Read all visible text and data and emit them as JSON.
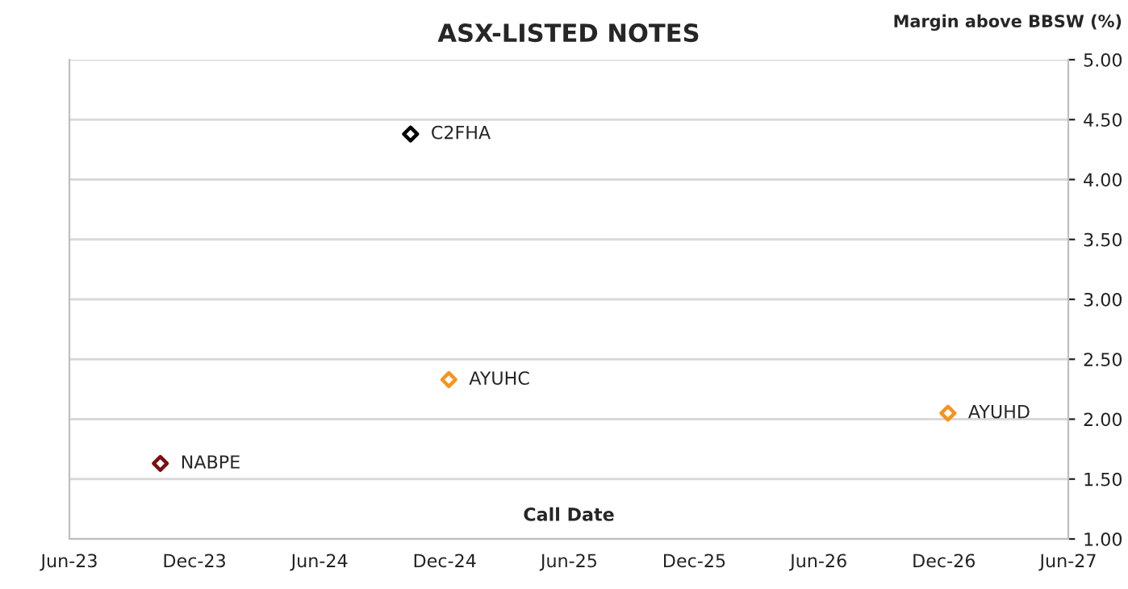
{
  "chart_data": {
    "type": "scatter",
    "title": "ASX-LISTED NOTES",
    "xlabel": "Call Date",
    "ylabel": "Margin above BBSW (%)",
    "series": [
      {
        "name": "C2FHA",
        "color": "#000000",
        "x": [
          "2024-10-12"
        ],
        "values": [
          4.38
        ]
      },
      {
        "name": "AYUHC",
        "color": "#f7931e",
        "x": [
          "2024-12-07"
        ],
        "values": [
          2.33
        ]
      },
      {
        "name": "AYUHD",
        "color": "#f7931e",
        "x": [
          "2026-12-07"
        ],
        "values": [
          2.05
        ]
      },
      {
        "name": "NABPE",
        "color": "#7b0f0f",
        "x": [
          "2023-10-12"
        ],
        "values": [
          1.63
        ]
      }
    ],
    "xlim": [
      "2023-06-01",
      "2027-06-01"
    ],
    "xticks": [
      {
        "value": "2023-06-01",
        "label": "Jun-23"
      },
      {
        "value": "2023-12-01",
        "label": "Dec-23"
      },
      {
        "value": "2024-06-01",
        "label": "Jun-24"
      },
      {
        "value": "2024-12-01",
        "label": "Dec-24"
      },
      {
        "value": "2025-06-01",
        "label": "Jun-25"
      },
      {
        "value": "2025-12-01",
        "label": "Dec-25"
      },
      {
        "value": "2026-06-01",
        "label": "Jun-26"
      },
      {
        "value": "2026-12-01",
        "label": "Dec-26"
      },
      {
        "value": "2027-06-01",
        "label": "Jun-27"
      }
    ],
    "ylim": [
      1.0,
      5.0
    ],
    "yticks": [
      {
        "value": 1.0,
        "label": "1.00"
      },
      {
        "value": 1.5,
        "label": "1.50"
      },
      {
        "value": 2.0,
        "label": "2.00"
      },
      {
        "value": 2.5,
        "label": "2.50"
      },
      {
        "value": 3.0,
        "label": "3.00"
      },
      {
        "value": 3.5,
        "label": "3.50"
      },
      {
        "value": 4.0,
        "label": "4.00"
      },
      {
        "value": 4.5,
        "label": "4.50"
      },
      {
        "value": 5.0,
        "label": "5.00"
      }
    ],
    "grid": "y",
    "marker": "diamond",
    "legend": false
  }
}
